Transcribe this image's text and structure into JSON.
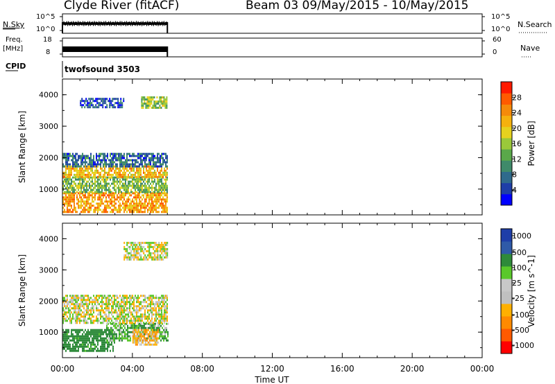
{
  "header": {
    "station": "Clyde River (fitACF)",
    "beam_date": "Beam 03 09/May/2015 - 10/May/2015"
  },
  "aux_panels": {
    "nsky": {
      "label": "N.Sky",
      "ticks": [
        "10^5",
        "10^0"
      ]
    },
    "nsearch": {
      "label": "N.Search",
      "ticks": [
        "10^5",
        "10^0"
      ]
    },
    "freq": {
      "label_line1": "Freq.",
      "label_line2": "[MHz]",
      "ticks": [
        "18",
        "8"
      ]
    },
    "nave": {
      "label": "Nave",
      "ticks": [
        "60",
        "0"
      ]
    },
    "cpid": {
      "label": "CPID",
      "value": "twofsound 3503"
    }
  },
  "colors": {
    "power_scale": [
      "#0000ff",
      "#1e3ea8",
      "#2f6a8c",
      "#3f8a6a",
      "#5aa84a",
      "#9ac83a",
      "#e6d21e",
      "#f5b10e",
      "#f58a0a",
      "#ff5a00",
      "#ff1a00"
    ],
    "velocity_scale": [
      "#ff0000",
      "#ff5a00",
      "#ff8a00",
      "#ffb000",
      "#c0c0c0",
      "#c8c8c8",
      "#5ac82a",
      "#2e8a3a",
      "#2f5aa8",
      "#1e3ea8"
    ]
  },
  "chart_data": [
    {
      "type": "heatmap",
      "panel": "power",
      "xlabel": "Time UT",
      "ylabel": "Slant Range [km]",
      "x_ticks": [
        "00:00",
        "04:00",
        "08:00",
        "12:00",
        "16:00",
        "20:00",
        "00:00"
      ],
      "y_ticks": [
        "1000",
        "2000",
        "3000",
        "4000"
      ],
      "xlim_hours": [
        0,
        24
      ],
      "ylim_km": [
        180,
        4500
      ],
      "colorbar_label": "Power [dB]",
      "colorbar_ticks": [
        "28",
        "24",
        "20",
        "16",
        "12",
        "8",
        "4"
      ],
      "colorbar_range": [
        0,
        32
      ],
      "data_coverage_hours": [
        0,
        6
      ],
      "echo_regions": [
        {
          "t_start": 0.0,
          "t_end": 6.0,
          "range_start": 300,
          "range_end": 900,
          "level": 24
        },
        {
          "t_start": 0.0,
          "t_end": 6.0,
          "range_start": 900,
          "range_end": 1400,
          "level": 14
        },
        {
          "t_start": 0.0,
          "t_end": 6.0,
          "range_start": 1400,
          "range_end": 1750,
          "level": 22
        },
        {
          "t_start": 0.0,
          "t_end": 6.0,
          "range_start": 1750,
          "range_end": 2150,
          "level": 6
        },
        {
          "t_start": 4.5,
          "t_end": 6.0,
          "range_start": 3600,
          "range_end": 3950,
          "level": 16
        },
        {
          "t_start": 1.0,
          "t_end": 3.5,
          "range_start": 3600,
          "range_end": 3900,
          "level": 5
        }
      ]
    },
    {
      "type": "heatmap",
      "panel": "velocity",
      "xlabel": "Time UT",
      "ylabel": "Slant Range [km]",
      "x_ticks": [
        "00:00",
        "04:00",
        "08:00",
        "12:00",
        "16:00",
        "20:00",
        "00:00"
      ],
      "y_ticks": [
        "1000",
        "2000",
        "3000",
        "4000"
      ],
      "xlim_hours": [
        0,
        24
      ],
      "ylim_km": [
        180,
        4500
      ],
      "colorbar_label": "Velocity [m s^-1]",
      "colorbar_ticks": [
        "1000",
        "500",
        "100",
        "25",
        "-25",
        "-100",
        "-500",
        "-1000"
      ],
      "data_coverage_hours": [
        0,
        6
      ],
      "echo_regions": [
        {
          "t_start": 0.0,
          "t_end": 3.0,
          "range_start": 400,
          "range_end": 1100,
          "level": 150
        },
        {
          "t_start": 2.5,
          "t_end": 6.0,
          "range_start": 700,
          "range_end": 1300,
          "level": 60
        },
        {
          "t_start": 4.0,
          "t_end": 5.5,
          "range_start": 600,
          "range_end": 1100,
          "level": -60
        },
        {
          "t_start": 0.0,
          "t_end": 6.0,
          "range_start": 1300,
          "range_end": 2200,
          "level": 0
        },
        {
          "t_start": 3.5,
          "t_end": 6.0,
          "range_start": 3300,
          "range_end": 3900,
          "level": 0
        }
      ]
    }
  ]
}
